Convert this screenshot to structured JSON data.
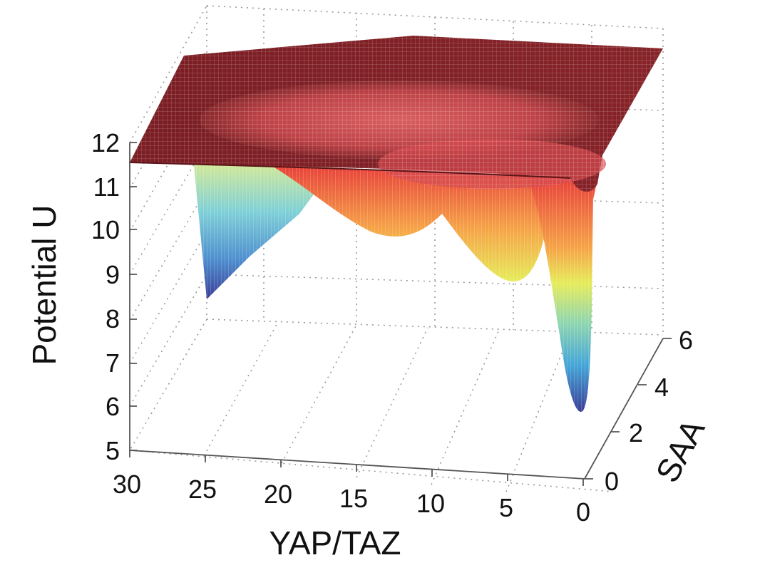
{
  "chart_data": {
    "type": "surface",
    "title": "",
    "zlabel": "Potential U",
    "xlabel": "YAP/TAZ",
    "ylabel": "SAA",
    "xlim": [
      0,
      30
    ],
    "ylim": [
      0,
      6
    ],
    "zlim": [
      5,
      12
    ],
    "z_ticks": [
      "5",
      "6",
      "7",
      "8",
      "9",
      "10",
      "11",
      "12"
    ],
    "x_ticks": [
      "30",
      "25",
      "20",
      "15",
      "10",
      "5",
      "0"
    ],
    "y_ticks": [
      "0",
      "2",
      "4",
      "6"
    ],
    "surface_plateau_value": 11.5,
    "minima": [
      {
        "yap_taz": 25,
        "saa": 0.5,
        "potential": 8.4
      },
      {
        "yap_taz": 13,
        "saa": 2.5,
        "potential": 9.9
      },
      {
        "yap_taz": 6,
        "saa": 3.0,
        "potential": 8.9
      },
      {
        "yap_taz": 1,
        "saa": 3.5,
        "potential": 5.9
      }
    ],
    "colormap": [
      "#3a3f98",
      "#45a6d8",
      "#8fd6b0",
      "#e6ec5a",
      "#f6a447",
      "#e8413a",
      "#7a1e24"
    ],
    "grid": true
  }
}
